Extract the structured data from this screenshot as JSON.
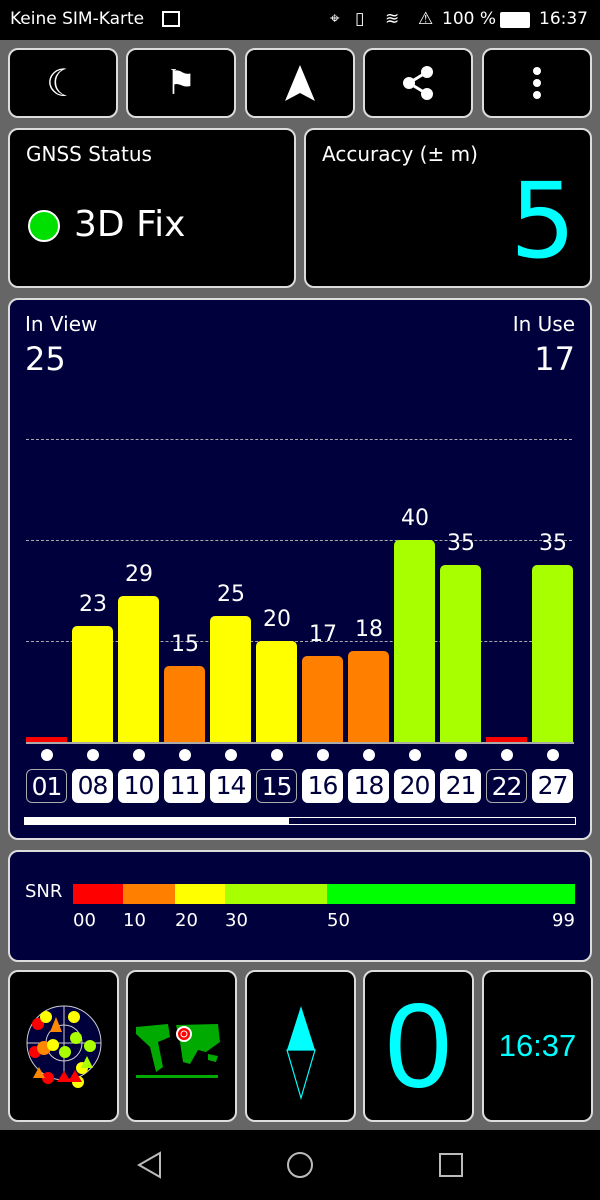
{
  "status_bar": {
    "carrier": "Keine SIM-Karte",
    "battery": "100 %",
    "time": "16:37"
  },
  "toolbar": {
    "buttons": [
      "night-mode",
      "help",
      "navigate",
      "share",
      "more"
    ]
  },
  "gnss": {
    "label": "GNSS Status",
    "fix": "3D Fix",
    "fix_color": "#00e000"
  },
  "accuracy": {
    "label": "Accuracy (± m)",
    "value": "5"
  },
  "sky": {
    "in_view_label": "In View",
    "in_view": "25",
    "in_use_label": "In Use",
    "in_use": "17",
    "scroll_fraction": 0.48
  },
  "chart_data": {
    "type": "bar",
    "ylim": [
      0,
      60
    ],
    "grid": [
      20,
      40,
      60
    ],
    "categories": [
      "01",
      "08",
      "10",
      "11",
      "14",
      "15",
      "16",
      "18",
      "20",
      "21",
      "22",
      "27"
    ],
    "values": [
      0,
      23,
      29,
      15,
      25,
      20,
      17,
      18,
      40,
      35,
      0,
      35
    ],
    "labels": [
      "",
      "23",
      "29",
      "15",
      "25",
      "20",
      "17",
      "18",
      "40",
      "35",
      "",
      "35"
    ],
    "in_use": [
      false,
      true,
      true,
      true,
      true,
      false,
      true,
      true,
      true,
      true,
      false,
      true
    ]
  },
  "snr": {
    "label": "SNR",
    "ticks": [
      "00",
      "10",
      "20",
      "30",
      "50",
      "99"
    ],
    "segments": [
      {
        "from": 0,
        "to": 10,
        "color": "#ff0000"
      },
      {
        "from": 10,
        "to": 20,
        "color": "#ff8000"
      },
      {
        "from": 20,
        "to": 30,
        "color": "#ffff00"
      },
      {
        "from": 30,
        "to": 50,
        "color": "#a8ff00"
      },
      {
        "from": 50,
        "to": 99,
        "color": "#00ff00"
      }
    ]
  },
  "bottom": {
    "speed": "0",
    "clock": "16:37"
  }
}
